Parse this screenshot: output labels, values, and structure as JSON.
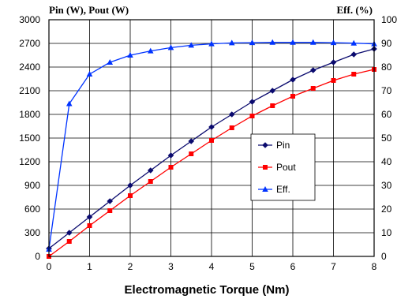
{
  "chart_data": {
    "type": "line",
    "title": "",
    "ylabel_left": "Pin (W), Pout (W)",
    "ylabel_right": "Eff. (%)",
    "xlabel": "Electromagnetic Torque (Nm)",
    "xlim": [
      0,
      8
    ],
    "ylim_left": [
      0,
      3000
    ],
    "ylim_right": [
      0,
      100
    ],
    "x_ticks": [
      "0",
      "1",
      "2",
      "3",
      "4",
      "5",
      "6",
      "7",
      "8"
    ],
    "y_left_ticks": [
      "0",
      "300",
      "600",
      "900",
      "1200",
      "1500",
      "1800",
      "2100",
      "2400",
      "2700",
      "3000"
    ],
    "y_right_ticks": [
      "0",
      "10",
      "20",
      "30",
      "40",
      "50",
      "60",
      "70",
      "80",
      "90",
      "100"
    ],
    "grid": true,
    "legend_position": "center-right",
    "series": [
      {
        "name": "Pin",
        "axis": "left",
        "marker": "diamond",
        "color": "#0a0a6e",
        "x": [
          0,
          0.5,
          1,
          1.5,
          2,
          2.5,
          3,
          3.5,
          4,
          4.5,
          5,
          5.5,
          6,
          6.5,
          7,
          7.5,
          8
        ],
        "y": [
          100,
          300,
          500,
          700,
          900,
          1090,
          1280,
          1460,
          1640,
          1800,
          1960,
          2100,
          2240,
          2360,
          2460,
          2560,
          2630
        ]
      },
      {
        "name": "Pout",
        "axis": "left",
        "marker": "square",
        "color": "#ff0000",
        "x": [
          0,
          0.5,
          1,
          1.5,
          2,
          2.5,
          3,
          3.5,
          4,
          4.5,
          5,
          5.5,
          6,
          6.5,
          7,
          7.5,
          8
        ],
        "y": [
          0,
          190,
          390,
          580,
          770,
          950,
          1130,
          1300,
          1470,
          1630,
          1780,
          1910,
          2030,
          2130,
          2230,
          2310,
          2370
        ]
      },
      {
        "name": "Eff.",
        "axis": "right",
        "marker": "triangle",
        "color": "#0033ff",
        "x": [
          0,
          0.5,
          1,
          1.5,
          2,
          2.5,
          3,
          3.5,
          4,
          4.5,
          5,
          5.5,
          6,
          6.5,
          7,
          7.5,
          8
        ],
        "y": [
          3,
          64.5,
          77,
          82,
          85,
          86.8,
          88.2,
          89.2,
          89.8,
          90.2,
          90.3,
          90.4,
          90.4,
          90.4,
          90.3,
          90.1,
          89.8
        ]
      }
    ]
  }
}
